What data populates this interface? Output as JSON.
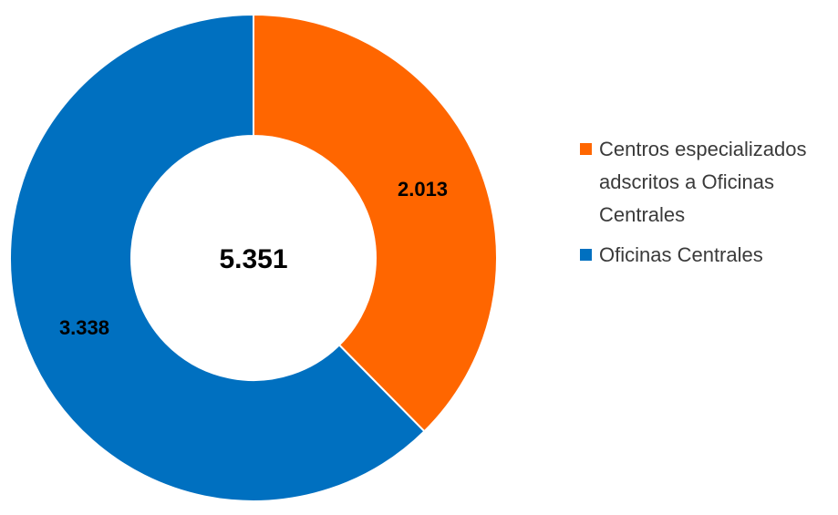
{
  "chart_data": {
    "type": "pie",
    "variant": "donut",
    "center_total": "5.351",
    "slices": [
      {
        "label": "Centros especializados adscritos a Oficinas Centrales",
        "value": 2013,
        "display": "2.013",
        "color": "#FF6600"
      },
      {
        "label": "Oficinas Centrales",
        "value": 3338,
        "display": "3.338",
        "color": "#0070C0"
      }
    ],
    "legend_position": "right"
  }
}
